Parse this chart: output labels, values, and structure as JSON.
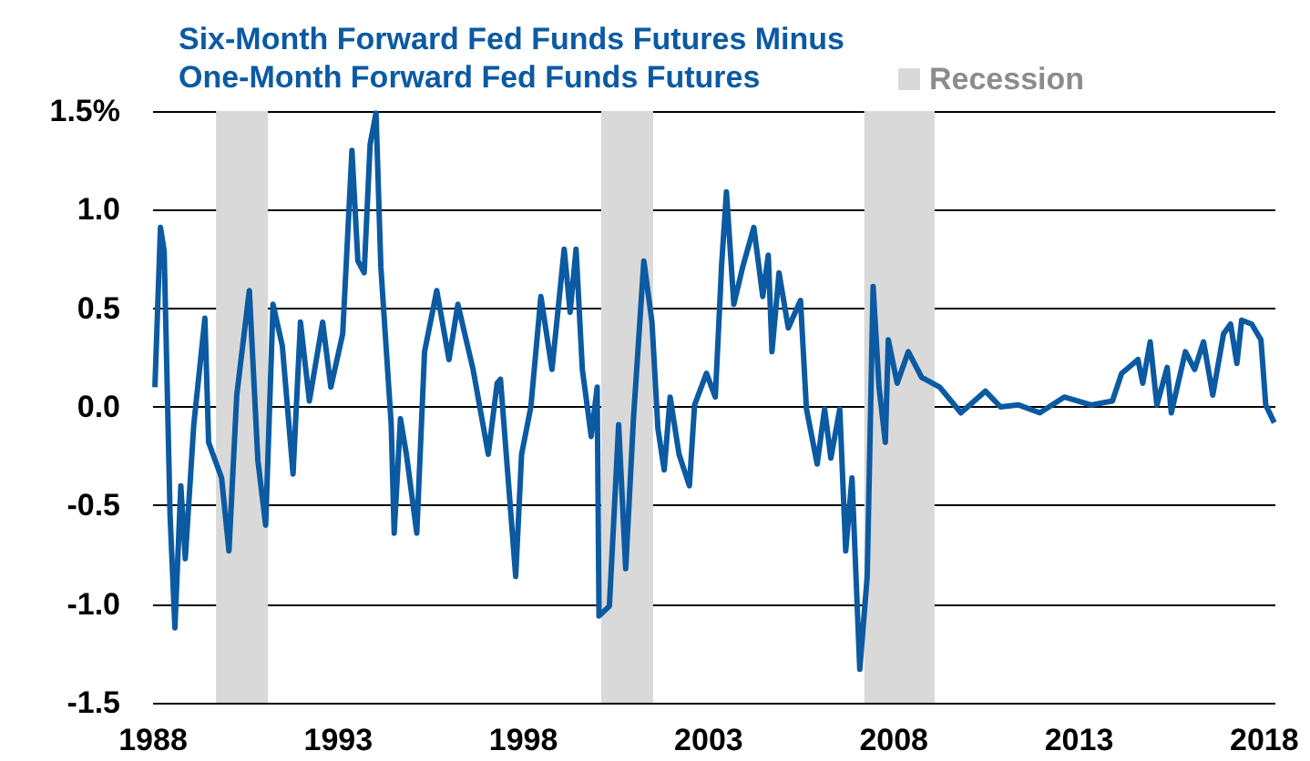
{
  "chart_data": {
    "type": "line",
    "xlim": [
      1988,
      2018.3
    ],
    "xticks": [
      1988,
      1993,
      1998,
      2003,
      2008,
      2013,
      2018
    ],
    "ylim": [
      -1.5,
      1.5
    ],
    "yticks": [
      {
        "value": 1.5,
        "label": "1.5%"
      },
      {
        "value": 1,
        "label": "1.0"
      },
      {
        "value": 0.5,
        "label": "0.5"
      },
      {
        "value": 0,
        "label": "0.0"
      },
      {
        "value": -0.5,
        "label": "-0.5"
      },
      {
        "value": -1,
        "label": "-1.0"
      },
      {
        "value": -1.5,
        "label": "-1.5"
      }
    ],
    "grid": "y",
    "legend": "top",
    "marker": "none",
    "line_style": "solid",
    "bands": [
      {
        "axis": "x",
        "from": 1989.7,
        "to": 1991.1,
        "label": "Recession",
        "color": "#d9d9d9"
      },
      {
        "axis": "x",
        "from": 2000.1,
        "to": 2001.5,
        "color": "#d9d9d9"
      },
      {
        "axis": "x",
        "from": 2007.2,
        "to": 2009.1,
        "color": "#d9d9d9"
      }
    ],
    "series": [
      {
        "name": "Six-Month Forward Fed Funds Futures Minus One-Month Forward Fed Funds Futures",
        "color": "#0b5aa2",
        "x": [
          1988.05,
          1988.2,
          1988.3,
          1988.46,
          1988.59,
          1988.75,
          1988.87,
          1989.1,
          1989.4,
          1989.5,
          1989.85,
          1990.05,
          1990.26,
          1990.6,
          1990.83,
          1991.04,
          1991.24,
          1991.49,
          1991.78,
          1991.98,
          1992.22,
          1992.58,
          1992.8,
          1993.12,
          1993.37,
          1993.53,
          1993.7,
          1993.86,
          1994.02,
          1994.15,
          1994.43,
          1994.51,
          1994.68,
          1994.84,
          1995.12,
          1995.33,
          1995.66,
          1995.99,
          1996.23,
          1996.64,
          1997.05,
          1997.29,
          1997.38,
          1997.79,
          1997.95,
          1998.2,
          1998.47,
          1998.77,
          1999.1,
          1999.26,
          1999.42,
          1999.59,
          1999.83,
          1999.99,
          2000.04,
          2000.32,
          2000.57,
          2000.76,
          2000.97,
          2001.25,
          2001.47,
          2001.63,
          2001.8,
          2001.96,
          2002.2,
          2002.48,
          2002.62,
          2002.94,
          2003.18,
          2003.35,
          2003.48,
          2003.68,
          2003.92,
          2004.22,
          2004.46,
          2004.61,
          2004.71,
          2004.9,
          2005.15,
          2005.48,
          2005.64,
          2005.93,
          2006.13,
          2006.3,
          2006.54,
          2006.7,
          2006.87,
          2007.08,
          2007.28,
          2007.44,
          2007.6,
          2007.77,
          2007.85,
          2008.09,
          2008.39,
          2008.75,
          2009.24,
          2009.81,
          2010.47,
          2010.88,
          2011.37,
          2011.94,
          2012.6,
          2013.33,
          2013.9,
          2014.15,
          2014.59,
          2014.72,
          2014.92,
          2015.1,
          2015.38,
          2015.49,
          2015.87,
          2016.12,
          2016.36,
          2016.61,
          2016.9,
          2017.09,
          2017.26,
          2017.39,
          2017.66,
          2017.91,
          2018.04,
          2018.27
        ],
        "values": [
          0.1,
          0.91,
          0.79,
          -0.55,
          -1.12,
          -0.4,
          -0.77,
          -0.09,
          0.45,
          -0.18,
          -0.36,
          -0.73,
          0.06,
          0.59,
          -0.27,
          -0.6,
          0.52,
          0.31,
          -0.34,
          0.43,
          0.03,
          0.43,
          0.1,
          0.37,
          1.3,
          0.74,
          0.68,
          1.33,
          1.49,
          0.71,
          -0.09,
          -0.64,
          -0.06,
          -0.24,
          -0.64,
          0.28,
          0.59,
          0.24,
          0.52,
          0.19,
          -0.24,
          0.12,
          0.14,
          -0.86,
          -0.24,
          0.0,
          0.56,
          0.19,
          0.8,
          0.48,
          0.8,
          0.19,
          -0.15,
          0.1,
          -1.06,
          -1.01,
          -0.09,
          -0.82,
          -0.06,
          0.74,
          0.43,
          -0.11,
          -0.32,
          0.05,
          -0.24,
          -0.4,
          0.01,
          0.17,
          0.05,
          0.72,
          1.09,
          0.52,
          0.71,
          0.91,
          0.56,
          0.77,
          0.28,
          0.68,
          0.4,
          0.54,
          -0.01,
          -0.29,
          -0.01,
          -0.26,
          -0.01,
          -0.73,
          -0.36,
          -1.33,
          -0.86,
          0.61,
          0.1,
          -0.18,
          0.34,
          0.12,
          0.28,
          0.15,
          0.1,
          -0.03,
          0.08,
          0.0,
          0.01,
          -0.03,
          0.05,
          0.01,
          0.03,
          0.17,
          0.24,
          0.12,
          0.33,
          0.01,
          0.2,
          -0.03,
          0.28,
          0.19,
          0.33,
          0.06,
          0.37,
          0.42,
          0.22,
          0.44,
          0.42,
          0.34,
          0.01,
          -0.08
        ]
      }
    ]
  }
}
